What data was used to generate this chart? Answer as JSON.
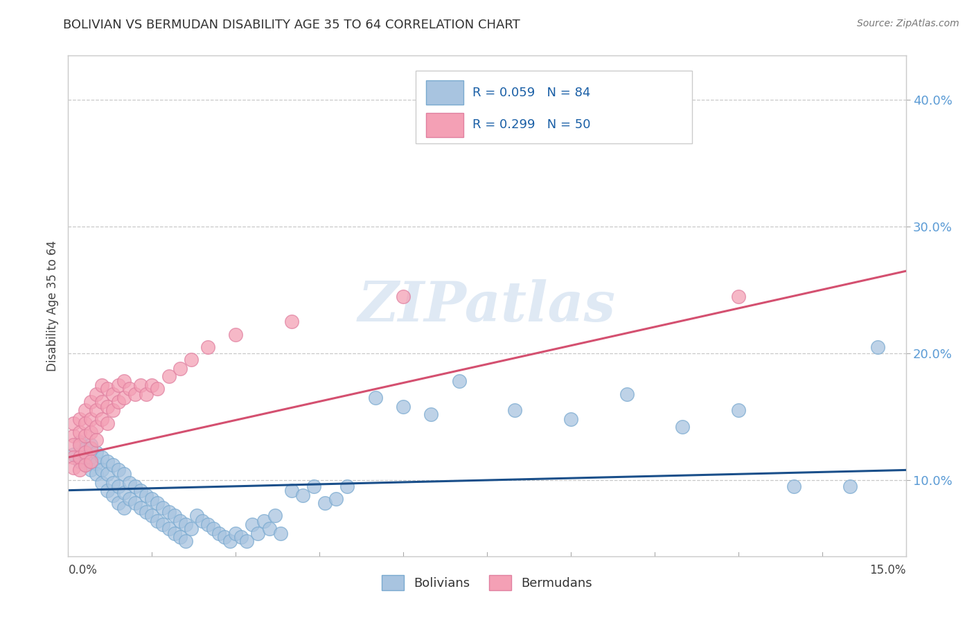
{
  "title": "BOLIVIAN VS BERMUDAN DISABILITY AGE 35 TO 64 CORRELATION CHART",
  "source": "Source: ZipAtlas.com",
  "ylabel": "Disability Age 35 to 64",
  "ylabel_right_ticks": [
    "10.0%",
    "20.0%",
    "30.0%",
    "40.0%"
  ],
  "ylabel_right_vals": [
    0.1,
    0.2,
    0.3,
    0.4
  ],
  "xmin": 0.0,
  "xmax": 0.15,
  "ymin": 0.04,
  "ymax": 0.435,
  "watermark": "ZIPatlas",
  "legend_blue_label": "R = 0.059   N = 84",
  "legend_pink_label": "R = 0.299   N = 50",
  "bolivians_color": "#a8c4e0",
  "bermudans_color": "#f4a0b5",
  "trend_blue_color": "#1a4f8a",
  "trend_pink_color": "#d45070",
  "blue_trend_x0": 0.0,
  "blue_trend_y0": 0.092,
  "blue_trend_x1": 0.15,
  "blue_trend_y1": 0.108,
  "pink_trend_x0": 0.0,
  "pink_trend_y0": 0.118,
  "pink_trend_x1": 0.15,
  "pink_trend_y1": 0.265,
  "blue_x": [
    0.001,
    0.002,
    0.002,
    0.003,
    0.003,
    0.003,
    0.004,
    0.004,
    0.004,
    0.005,
    0.005,
    0.005,
    0.006,
    0.006,
    0.006,
    0.007,
    0.007,
    0.007,
    0.008,
    0.008,
    0.008,
    0.009,
    0.009,
    0.009,
    0.01,
    0.01,
    0.01,
    0.011,
    0.011,
    0.012,
    0.012,
    0.013,
    0.013,
    0.014,
    0.014,
    0.015,
    0.015,
    0.016,
    0.016,
    0.017,
    0.017,
    0.018,
    0.018,
    0.019,
    0.019,
    0.02,
    0.02,
    0.021,
    0.021,
    0.022,
    0.023,
    0.024,
    0.025,
    0.026,
    0.027,
    0.028,
    0.029,
    0.03,
    0.031,
    0.032,
    0.033,
    0.034,
    0.035,
    0.036,
    0.037,
    0.038,
    0.04,
    0.042,
    0.044,
    0.046,
    0.048,
    0.05,
    0.055,
    0.06,
    0.065,
    0.07,
    0.08,
    0.09,
    0.1,
    0.11,
    0.12,
    0.13,
    0.14,
    0.145
  ],
  "blue_y": [
    0.12,
    0.13,
    0.115,
    0.125,
    0.118,
    0.112,
    0.128,
    0.118,
    0.108,
    0.122,
    0.113,
    0.105,
    0.118,
    0.108,
    0.098,
    0.115,
    0.105,
    0.092,
    0.112,
    0.098,
    0.088,
    0.108,
    0.095,
    0.082,
    0.105,
    0.09,
    0.078,
    0.098,
    0.085,
    0.095,
    0.082,
    0.092,
    0.078,
    0.088,
    0.075,
    0.085,
    0.072,
    0.082,
    0.068,
    0.078,
    0.065,
    0.075,
    0.062,
    0.072,
    0.058,
    0.068,
    0.055,
    0.065,
    0.052,
    0.062,
    0.072,
    0.068,
    0.065,
    0.062,
    0.058,
    0.055,
    0.052,
    0.058,
    0.055,
    0.052,
    0.065,
    0.058,
    0.068,
    0.062,
    0.072,
    0.058,
    0.092,
    0.088,
    0.095,
    0.082,
    0.085,
    0.095,
    0.165,
    0.158,
    0.152,
    0.178,
    0.155,
    0.148,
    0.168,
    0.142,
    0.155,
    0.095,
    0.095,
    0.205
  ],
  "pink_x": [
    0.001,
    0.001,
    0.001,
    0.001,
    0.001,
    0.002,
    0.002,
    0.002,
    0.002,
    0.002,
    0.003,
    0.003,
    0.003,
    0.003,
    0.003,
    0.004,
    0.004,
    0.004,
    0.004,
    0.004,
    0.005,
    0.005,
    0.005,
    0.005,
    0.006,
    0.006,
    0.006,
    0.007,
    0.007,
    0.007,
    0.008,
    0.008,
    0.009,
    0.009,
    0.01,
    0.01,
    0.011,
    0.012,
    0.013,
    0.014,
    0.015,
    0.016,
    0.018,
    0.02,
    0.022,
    0.025,
    0.03,
    0.04,
    0.06,
    0.12
  ],
  "pink_y": [
    0.135,
    0.145,
    0.128,
    0.118,
    0.11,
    0.148,
    0.138,
    0.128,
    0.118,
    0.108,
    0.155,
    0.145,
    0.135,
    0.122,
    0.112,
    0.162,
    0.148,
    0.138,
    0.125,
    0.115,
    0.168,
    0.155,
    0.142,
    0.132,
    0.175,
    0.162,
    0.148,
    0.172,
    0.158,
    0.145,
    0.168,
    0.155,
    0.175,
    0.162,
    0.178,
    0.165,
    0.172,
    0.168,
    0.175,
    0.168,
    0.175,
    0.172,
    0.182,
    0.188,
    0.195,
    0.205,
    0.215,
    0.225,
    0.245,
    0.245
  ]
}
